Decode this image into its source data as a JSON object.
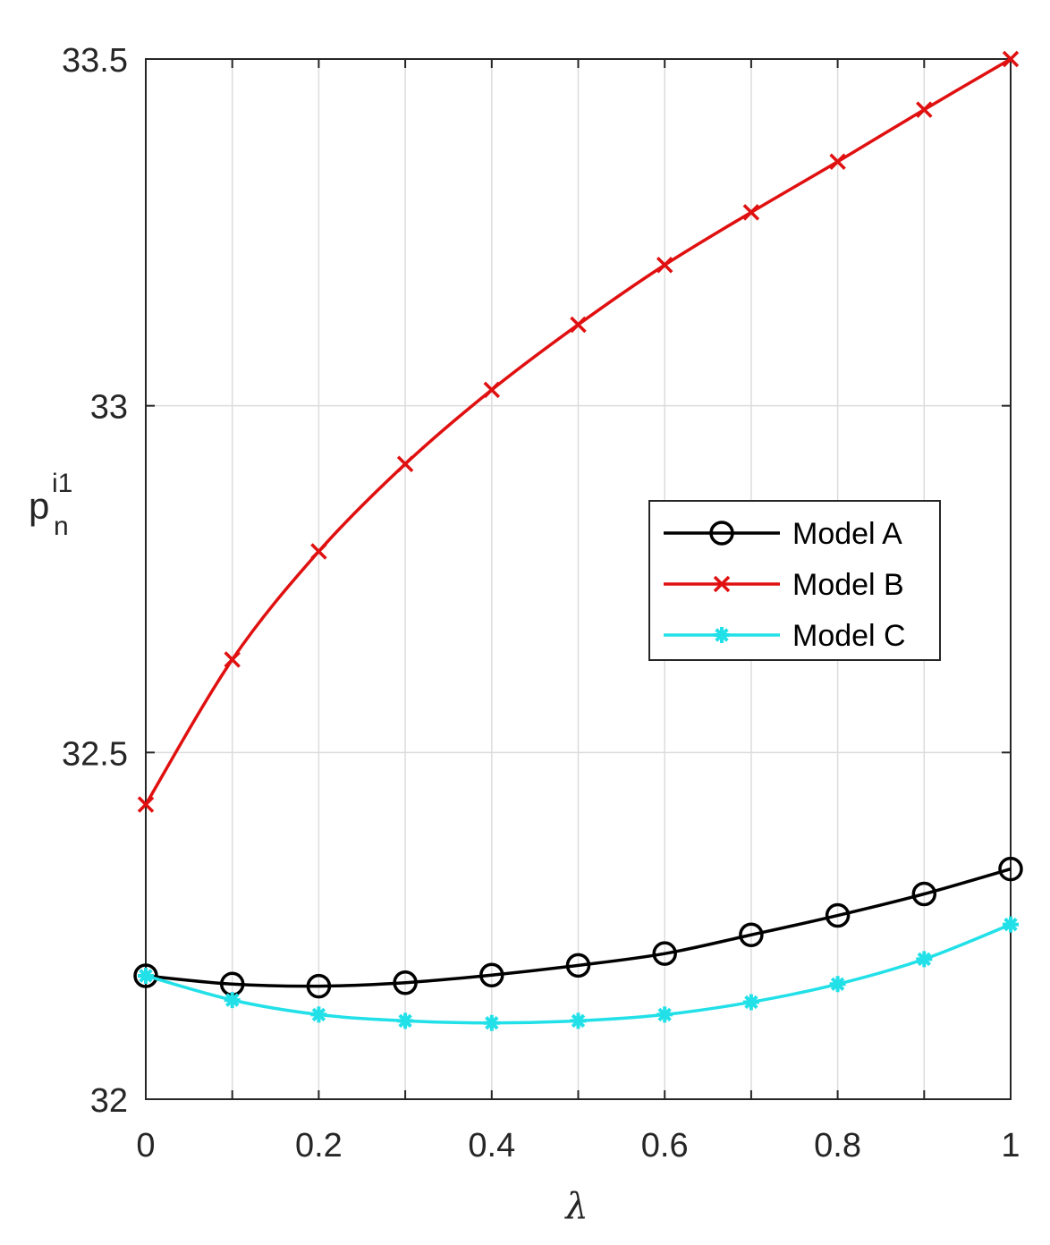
{
  "chart_data": {
    "type": "line",
    "title": "",
    "xlabel": "λ",
    "ylabel": {
      "base": "p",
      "superscript": "i1",
      "subscript": "n"
    },
    "xlim": [
      0,
      1
    ],
    "ylim": [
      32,
      33.5
    ],
    "xticks": [
      0,
      0.2,
      0.4,
      0.6,
      0.8,
      1
    ],
    "xtick_labels": [
      "0",
      "0.2",
      "0.4",
      "0.6",
      "0.8",
      "1"
    ],
    "yticks": [
      32,
      32.5,
      33,
      33.5
    ],
    "ytick_labels": [
      "32",
      "32.5",
      "33",
      "33.5"
    ],
    "grid": true,
    "legend_position": "center-right",
    "x": [
      0,
      0.1,
      0.2,
      0.3,
      0.4,
      0.5,
      0.6,
      0.7,
      0.8,
      0.9,
      1.0
    ],
    "series": [
      {
        "name": "Model A",
        "color": "#000000",
        "marker": "circle",
        "values": [
          32.178,
          32.166,
          32.163,
          32.168,
          32.179,
          32.193,
          32.21,
          32.237,
          32.265,
          32.296,
          32.332
        ]
      },
      {
        "name": "Model B",
        "color": "#e01010",
        "marker": "x",
        "values": [
          32.425,
          32.634,
          32.79,
          32.916,
          33.023,
          33.117,
          33.203,
          33.279,
          33.352,
          33.427,
          33.5
        ]
      },
      {
        "name": "Model C",
        "color": "#22e0e8",
        "marker": "star",
        "values": [
          32.178,
          32.143,
          32.122,
          32.113,
          32.11,
          32.113,
          32.122,
          32.14,
          32.166,
          32.202,
          32.252
        ]
      }
    ]
  }
}
